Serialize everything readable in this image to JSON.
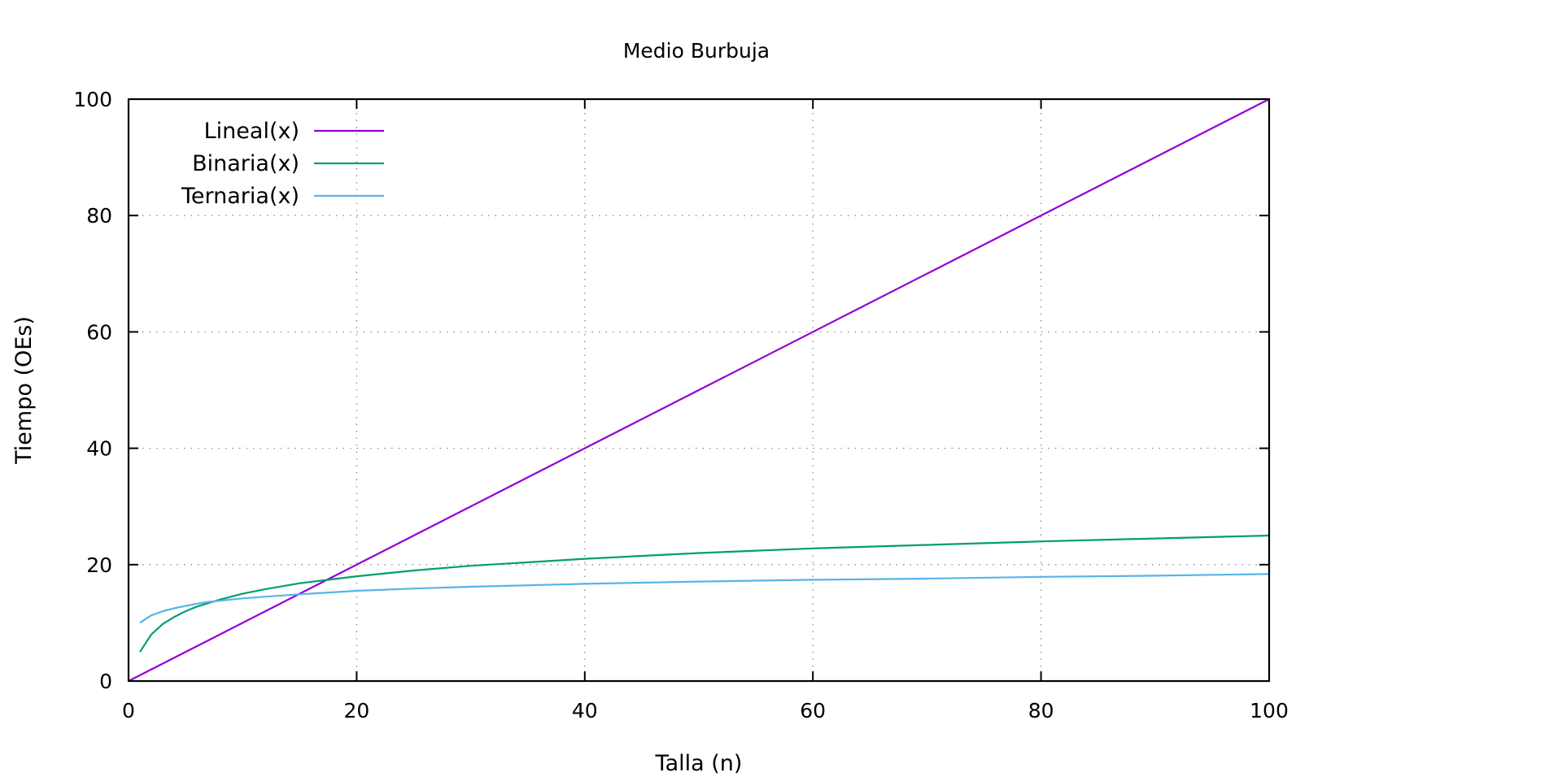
{
  "chart_data": {
    "type": "line",
    "title": "Medio Burbuja",
    "xlabel": "Talla (n)",
    "ylabel": "Tiempo (OEs)",
    "xlim": [
      0,
      100
    ],
    "ylim": [
      0,
      100
    ],
    "xticks": [
      "0",
      "20",
      "40",
      "60",
      "80",
      "100"
    ],
    "yticks": [
      "0",
      "20",
      "40",
      "60",
      "80",
      "100"
    ],
    "grid": true,
    "legend_position": "top-left",
    "series": [
      {
        "name": "Lineal(x)",
        "color": "#9400d3",
        "x": [
          0,
          100
        ],
        "y": [
          0,
          100
        ]
      },
      {
        "name": "Binaria(x)",
        "color": "#009e73",
        "x": [
          1,
          2,
          3,
          4,
          5,
          6,
          7,
          8,
          10,
          12,
          15,
          20,
          25,
          30,
          40,
          50,
          60,
          70,
          80,
          90,
          100
        ],
        "y": [
          5.0,
          8.0,
          9.8,
          11.0,
          12.0,
          12.8,
          13.4,
          14.0,
          15.0,
          15.8,
          16.8,
          18.0,
          19.0,
          19.8,
          21.0,
          22.0,
          22.8,
          23.4,
          24.0,
          24.5,
          25.0
        ]
      },
      {
        "name": "Ternaria(x)",
        "color": "#56b4e9",
        "x": [
          1,
          2,
          3,
          4,
          5,
          6,
          7,
          8,
          10,
          12,
          15,
          20,
          25,
          30,
          40,
          50,
          60,
          70,
          80,
          90,
          100
        ],
        "y": [
          10.0,
          11.3,
          12.0,
          12.5,
          12.9,
          13.3,
          13.6,
          13.8,
          14.2,
          14.5,
          14.9,
          15.5,
          15.9,
          16.2,
          16.7,
          17.1,
          17.4,
          17.6,
          17.9,
          18.1,
          18.4
        ]
      }
    ]
  }
}
